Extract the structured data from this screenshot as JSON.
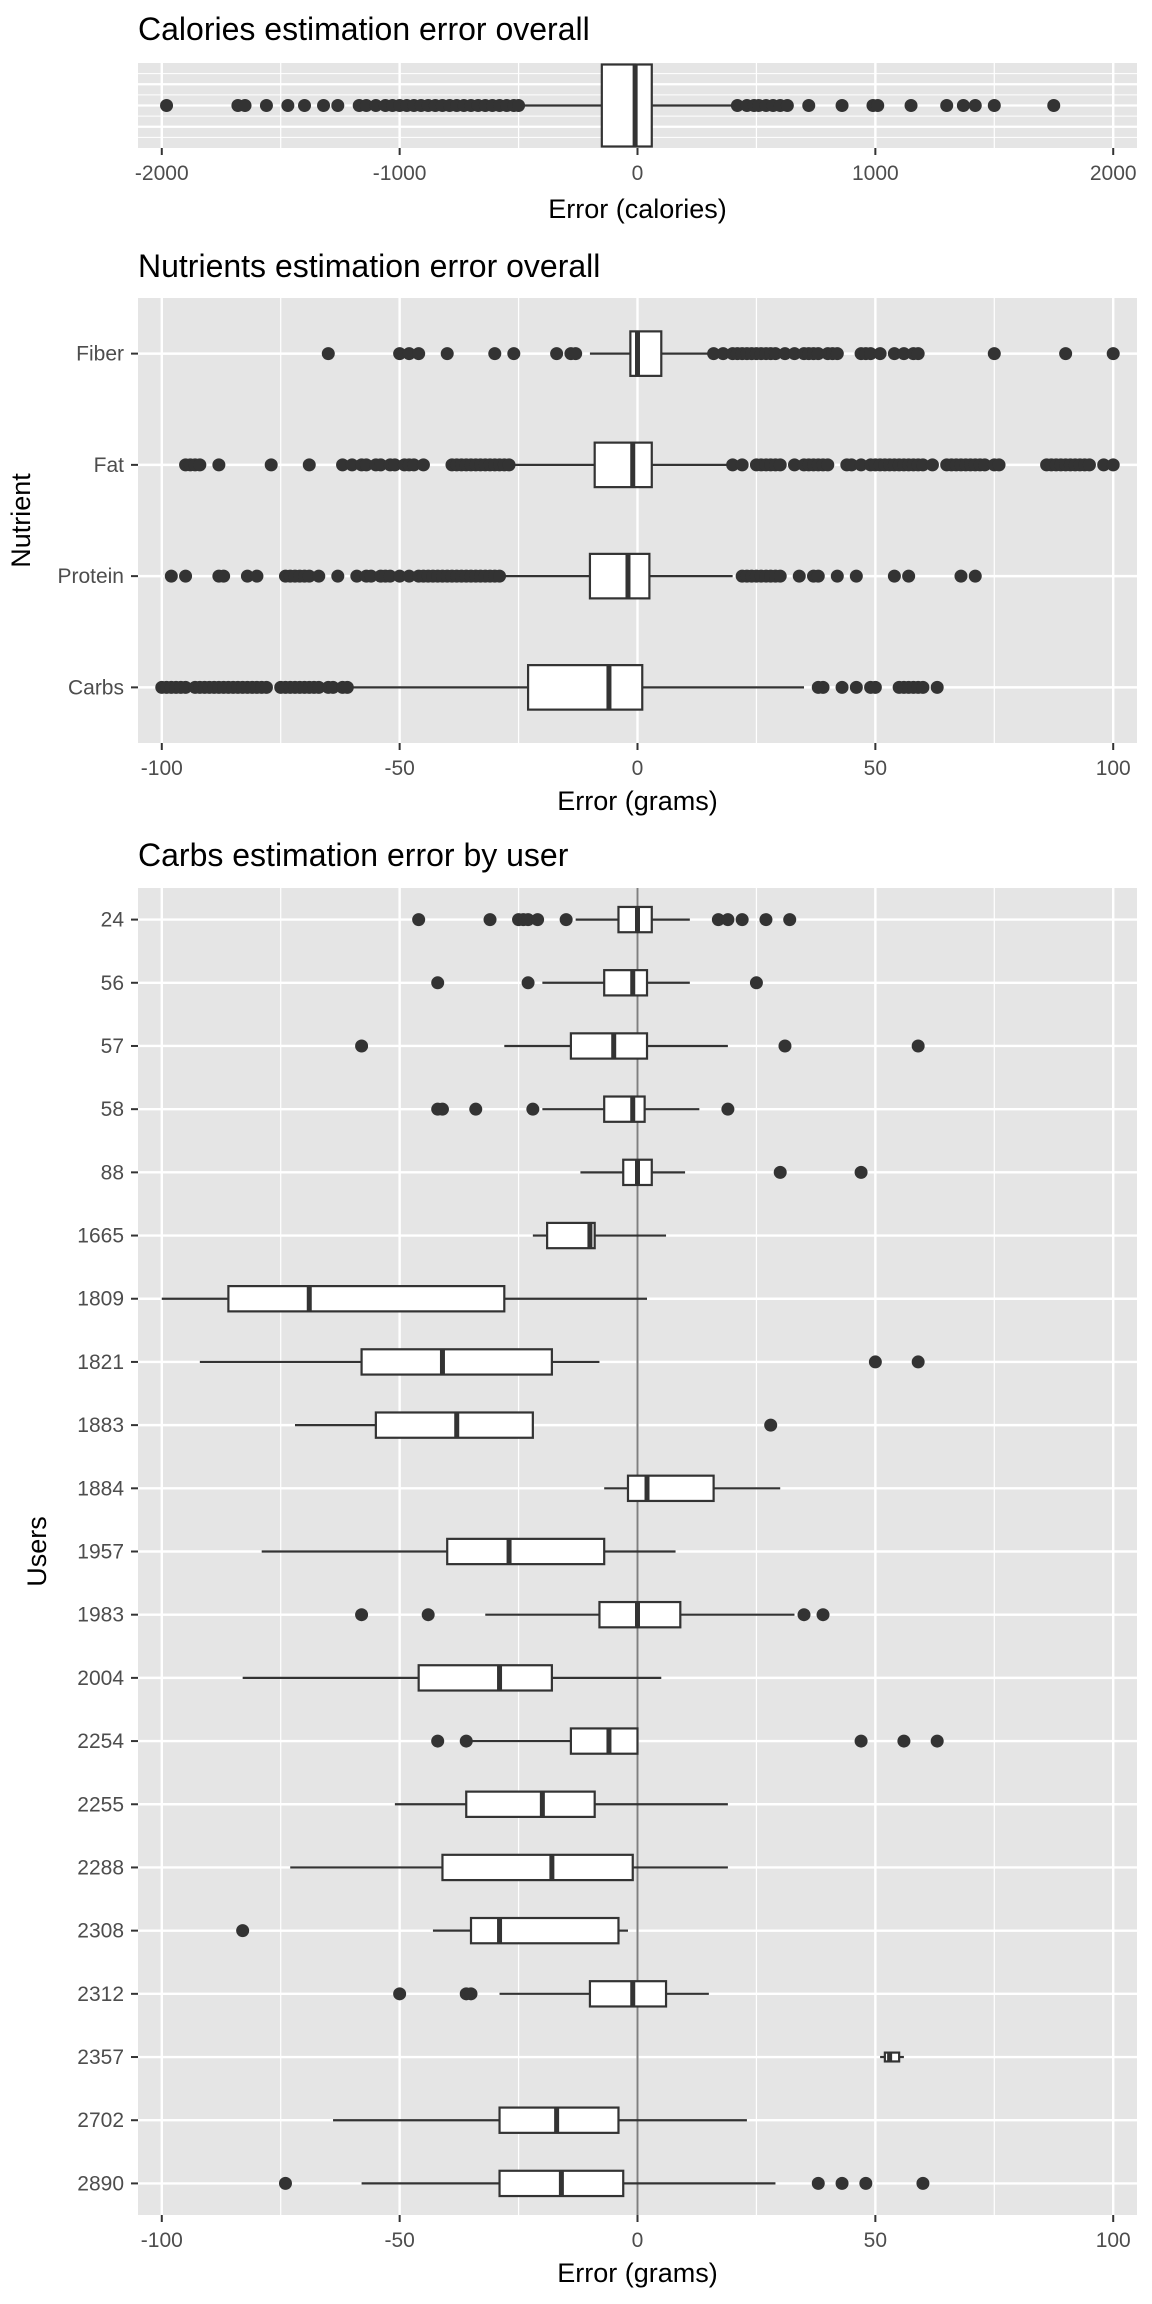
{
  "chart_data": [
    {
      "type": "boxplot",
      "title": "Calories estimation error overall",
      "xlabel": "Error (calories)",
      "ylabel": "",
      "xlim": [
        -2100,
        2100
      ],
      "x_ticks": [
        -2000,
        -1000,
        0,
        1000,
        2000
      ],
      "x_tick_labels": [
        "-2000",
        "-1000",
        "0",
        "1000",
        "2000"
      ],
      "grid": true,
      "colors": {
        "panel_bg": "#e5e5e5",
        "grid": "#ffffff",
        "box_fill": "#ffffff",
        "box_edge": "#333333",
        "point": "#333333"
      },
      "series": [
        {
          "name": "",
          "q1": -150,
          "median": -10,
          "q3": 60,
          "whisker_low": -480,
          "whisker_high": 400,
          "outliers": [
            -1980,
            -1680,
            -1650,
            -1560,
            -1470,
            -1400,
            -1320,
            -1260,
            -1170,
            -1140,
            -1100,
            -1060,
            -1030,
            -1000,
            -970,
            -940,
            -910,
            -880,
            -850,
            -820,
            -790,
            -760,
            -730,
            -700,
            -670,
            -640,
            -610,
            -580,
            -550,
            -520,
            -500,
            420,
            460,
            490,
            510,
            540,
            570,
            600,
            630,
            720,
            860,
            990,
            1010,
            1150,
            1300,
            1370,
            1420,
            1500,
            1750
          ]
        }
      ]
    },
    {
      "type": "boxplot",
      "title": "Nutrients estimation error overall",
      "xlabel": "Error (grams)",
      "ylabel": "Nutrient",
      "xlim": [
        -105,
        105
      ],
      "x_ticks": [
        -100,
        -50,
        0,
        50,
        100
      ],
      "x_tick_labels": [
        "-100",
        "-50",
        "0",
        "50",
        "100"
      ],
      "grid": true,
      "categories": [
        "Fiber",
        "Fat",
        "Protein",
        "Carbs"
      ],
      "series": [
        {
          "name": "Fiber",
          "q1": -1.5,
          "median": 0,
          "q3": 5,
          "whisker_low": -10,
          "whisker_high": 15,
          "outliers": [
            -65,
            -50,
            -48,
            -46,
            -40,
            -30,
            -26,
            -17,
            -14,
            -13,
            16,
            18,
            20,
            21,
            22,
            23,
            24,
            25,
            26,
            27,
            28,
            29,
            31,
            33,
            35,
            36,
            37,
            38,
            40,
            41,
            42,
            47,
            48,
            49,
            51,
            54,
            56,
            58,
            59,
            75,
            90,
            100
          ]
        },
        {
          "name": "Fat",
          "q1": -9,
          "median": -1,
          "q3": 3,
          "whisker_low": -26,
          "whisker_high": 19,
          "outliers": [
            -95,
            -94,
            -93,
            -92,
            -88,
            -77,
            -69,
            -62,
            -60,
            -58,
            -57,
            -55,
            -54,
            -52,
            -51,
            -49,
            -48,
            -47,
            -45,
            -39,
            -38,
            -37,
            -36,
            -35,
            -34,
            -33,
            -32,
            -31,
            -30,
            -29,
            -28,
            -27,
            20,
            22,
            25,
            26,
            27,
            28,
            29,
            30,
            33,
            35,
            36,
            37,
            38,
            39,
            40,
            44,
            45,
            47,
            49,
            50,
            51,
            52,
            53,
            54,
            55,
            56,
            57,
            58,
            59,
            60,
            62,
            65,
            66,
            67,
            68,
            69,
            70,
            71,
            72,
            73,
            75,
            76,
            86,
            87,
            88,
            89,
            90,
            91,
            92,
            93,
            94,
            95,
            98,
            100
          ]
        },
        {
          "name": "Protein",
          "q1": -10,
          "median": -2,
          "q3": 2.5,
          "whisker_low": -28,
          "whisker_high": 20,
          "outliers": [
            -98,
            -95,
            -88,
            -87,
            -82,
            -80,
            -74,
            -73,
            -72,
            -71,
            -70,
            -69,
            -67,
            -63,
            -59,
            -57,
            -56,
            -54,
            -53,
            -52,
            -50,
            -48,
            -46,
            -45,
            -44,
            -43,
            -42,
            -41,
            -40,
            -39,
            -38,
            -37,
            -36,
            -35,
            -34,
            -33,
            -32,
            -31,
            -30,
            -29,
            22,
            23,
            24,
            25,
            26,
            27,
            28,
            29,
            30,
            34,
            37,
            38,
            42,
            46,
            54,
            57,
            68,
            71
          ]
        },
        {
          "name": "Carbs",
          "q1": -23,
          "median": -6,
          "q3": 1,
          "whisker_low": -60,
          "whisker_high": 35,
          "outliers": [
            -100,
            -99,
            -98,
            -97,
            -96,
            -95,
            -93,
            -92,
            -91,
            -90,
            -89,
            -88,
            -87,
            -86,
            -85,
            -84,
            -83,
            -82,
            -81,
            -80,
            -79,
            -78,
            -75,
            -74,
            -73,
            -72,
            -71,
            -70,
            -69,
            -68,
            -67,
            -65,
            -64,
            -62,
            -61,
            38,
            39,
            43,
            46,
            49,
            50,
            55,
            56,
            57,
            58,
            59,
            60,
            63
          ]
        }
      ]
    },
    {
      "type": "boxplot",
      "title": "Carbs estimation error by user",
      "xlabel": "Error (grams)",
      "ylabel": "Users",
      "xlim": [
        -105,
        105
      ],
      "x_ticks": [
        -100,
        -50,
        0,
        50,
        100
      ],
      "x_tick_labels": [
        "-100",
        "-50",
        "0",
        "50",
        "100"
      ],
      "grid": true,
      "reference_line_x": 0,
      "categories": [
        "24",
        "56",
        "57",
        "58",
        "88",
        "1665",
        "1809",
        "1821",
        "1883",
        "1884",
        "1957",
        "1983",
        "2004",
        "2254",
        "2255",
        "2288",
        "2308",
        "2312",
        "2357",
        "2702",
        "2890"
      ],
      "series": [
        {
          "name": "24",
          "q1": -4,
          "median": 0,
          "q3": 3,
          "whisker_low": -13,
          "whisker_high": 11,
          "outliers": [
            -46,
            -31,
            -25,
            -24,
            -23,
            -21,
            -15,
            17,
            19,
            22,
            27,
            32
          ]
        },
        {
          "name": "56",
          "q1": -7,
          "median": -1,
          "q3": 2,
          "whisker_low": -20,
          "whisker_high": 11,
          "outliers": [
            -42,
            -23,
            25
          ]
        },
        {
          "name": "57",
          "q1": -14,
          "median": -5,
          "q3": 2,
          "whisker_low": -28,
          "whisker_high": 19,
          "outliers": [
            -58,
            31,
            59
          ]
        },
        {
          "name": "58",
          "q1": -7,
          "median": -1,
          "q3": 1.5,
          "whisker_low": -20,
          "whisker_high": 13,
          "outliers": [
            -42,
            -41,
            -34,
            -22,
            19
          ]
        },
        {
          "name": "88",
          "q1": -3,
          "median": 0,
          "q3": 3,
          "whisker_low": -12,
          "whisker_high": 10,
          "outliers": [
            30,
            47
          ]
        },
        {
          "name": "1665",
          "q1": -19,
          "median": -10,
          "q3": -9,
          "whisker_low": -22,
          "whisker_high": 6,
          "outliers": []
        },
        {
          "name": "1809",
          "q1": -86,
          "median": -69,
          "q3": -28,
          "whisker_low": -100,
          "whisker_high": 2,
          "outliers": []
        },
        {
          "name": "1821",
          "q1": -58,
          "median": -41,
          "q3": -18,
          "whisker_low": -92,
          "whisker_high": -8,
          "outliers": [
            50,
            59
          ]
        },
        {
          "name": "1883",
          "q1": -55,
          "median": -38,
          "q3": -22,
          "whisker_low": -72,
          "whisker_high": null,
          "outliers": [
            28
          ]
        },
        {
          "name": "1884",
          "q1": -2,
          "median": 2,
          "q3": 16,
          "whisker_low": -7,
          "whisker_high": 30,
          "outliers": []
        },
        {
          "name": "1957",
          "q1": -40,
          "median": -27,
          "q3": -7,
          "whisker_low": -79,
          "whisker_high": 8,
          "outliers": []
        },
        {
          "name": "1983",
          "q1": -8,
          "median": 0,
          "q3": 9,
          "whisker_low": -32,
          "whisker_high": 33,
          "outliers": [
            -58,
            -44,
            35,
            39
          ]
        },
        {
          "name": "2004",
          "q1": -46,
          "median": -29,
          "q3": -18,
          "whisker_low": -83,
          "whisker_high": 5,
          "outliers": []
        },
        {
          "name": "2254",
          "q1": -14,
          "median": -6,
          "q3": 0,
          "whisker_low": -36,
          "whisker_high": null,
          "outliers": [
            -42,
            -36,
            47,
            56,
            63
          ]
        },
        {
          "name": "2255",
          "q1": -36,
          "median": -20,
          "q3": -9,
          "whisker_low": -51,
          "whisker_high": 19,
          "outliers": []
        },
        {
          "name": "2288",
          "q1": -41,
          "median": -18,
          "q3": -1,
          "whisker_low": -73,
          "whisker_high": 19,
          "outliers": []
        },
        {
          "name": "2308",
          "q1": -35,
          "median": -29,
          "q3": -4,
          "whisker_low": -43,
          "whisker_high": -2,
          "outliers": [
            -83
          ]
        },
        {
          "name": "2312",
          "q1": -10,
          "median": -1,
          "q3": 6,
          "whisker_low": -29,
          "whisker_high": 15,
          "outliers": [
            -50,
            -36,
            -35
          ]
        },
        {
          "name": "2357",
          "q1": 52,
          "median": 53,
          "q3": 55,
          "whisker_low": 51,
          "whisker_high": 56,
          "outliers": []
        },
        {
          "name": "2702",
          "q1": -29,
          "median": -17,
          "q3": -4,
          "whisker_low": -64,
          "whisker_high": 23,
          "outliers": []
        },
        {
          "name": "2890",
          "q1": -29,
          "median": -16,
          "q3": -3,
          "whisker_low": -58,
          "whisker_high": 29,
          "outliers": [
            -74,
            38,
            43,
            48,
            60
          ]
        }
      ]
    }
  ]
}
